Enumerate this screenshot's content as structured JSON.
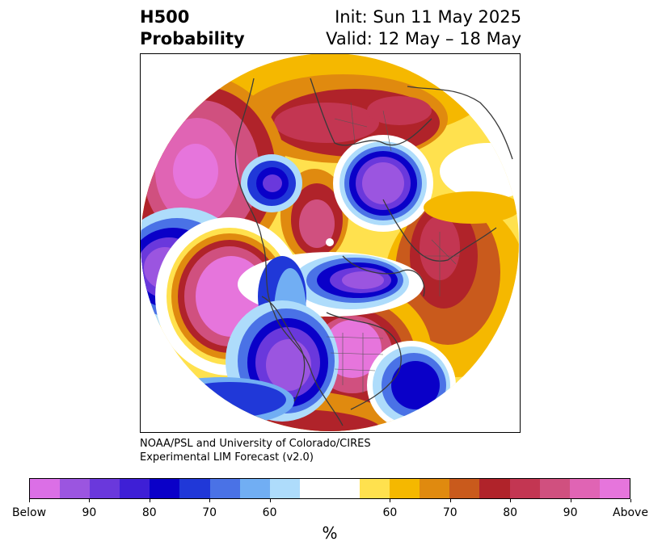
{
  "title": {
    "left_line1": "H500",
    "left_line2": "Probability",
    "right_line1": "Init: Sun 11 May 2025",
    "right_line2": "Valid: 12 May – 18 May"
  },
  "credit": {
    "line1": "NOAA/PSL and University of Colorado/CIRES",
    "line2": "Experimental LIM Forecast (v2.0)"
  },
  "colorbar": {
    "unit": "%",
    "colors": [
      "#db6fe6",
      "#9b55e0",
      "#6a38dc",
      "#3e1fd6",
      "#0a00c8",
      "#2038d8",
      "#4a72e6",
      "#71aef3",
      "#aedcfb",
      "#ffffff",
      "#ffffff",
      "#ffe14e",
      "#f5b800",
      "#e08a0f",
      "#c95a1c",
      "#b0232a",
      "#c33652",
      "#d0507f",
      "#e064b4",
      "#e675dc"
    ],
    "tick_labels": [
      "Below",
      "90",
      "80",
      "70",
      "60",
      "60",
      "70",
      "80",
      "90",
      "Above"
    ]
  },
  "map": {
    "projection": "north polar stereographic",
    "legend_colors": {
      "below_strong": "#db6fe6",
      "below_blue": "#0a00c8",
      "neutral": "#ffffff",
      "above_yellow": "#ffe14e",
      "above_red": "#b0232a",
      "above_strong": "#e675dc"
    }
  }
}
